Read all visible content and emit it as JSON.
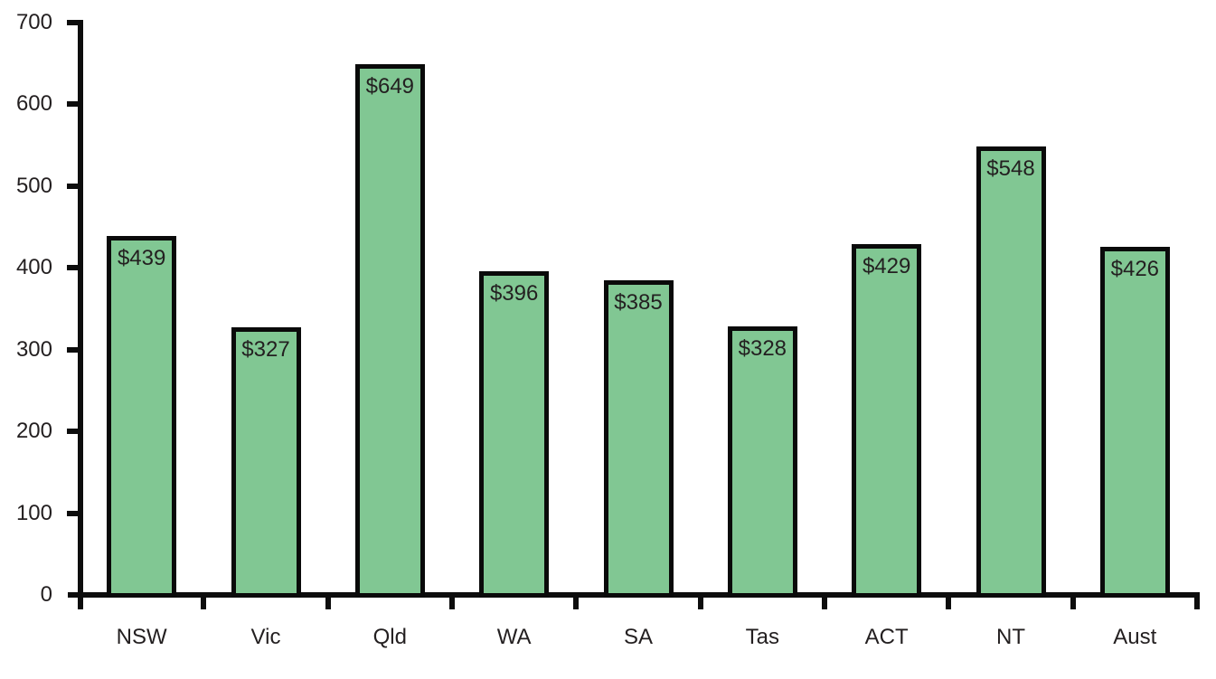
{
  "chart_data": {
    "type": "bar",
    "title": "",
    "xlabel": "",
    "ylabel": "",
    "categories": [
      "NSW",
      "Vic",
      "Qld",
      "WA",
      "SA",
      "Tas",
      "ACT",
      "NT",
      "Aust"
    ],
    "values": [
      439,
      327,
      649,
      396,
      385,
      328,
      429,
      548,
      426
    ],
    "bar_labels": [
      "$439",
      "$327",
      "$649",
      "$396",
      "$385",
      "$328",
      "$429",
      "$548",
      "$426"
    ],
    "y_ticks": [
      "0",
      "100",
      "200",
      "300",
      "400",
      "500",
      "600",
      "700"
    ],
    "y_tick_values": [
      0,
      100,
      200,
      300,
      400,
      500,
      600,
      700
    ],
    "ylim": [
      0,
      700
    ],
    "grid": false,
    "legend": null,
    "colors": {
      "bar_fill": "#81c793",
      "bar_border": "#0a0a0a",
      "axis": "#0d0d0d",
      "text": "#231f20"
    }
  }
}
